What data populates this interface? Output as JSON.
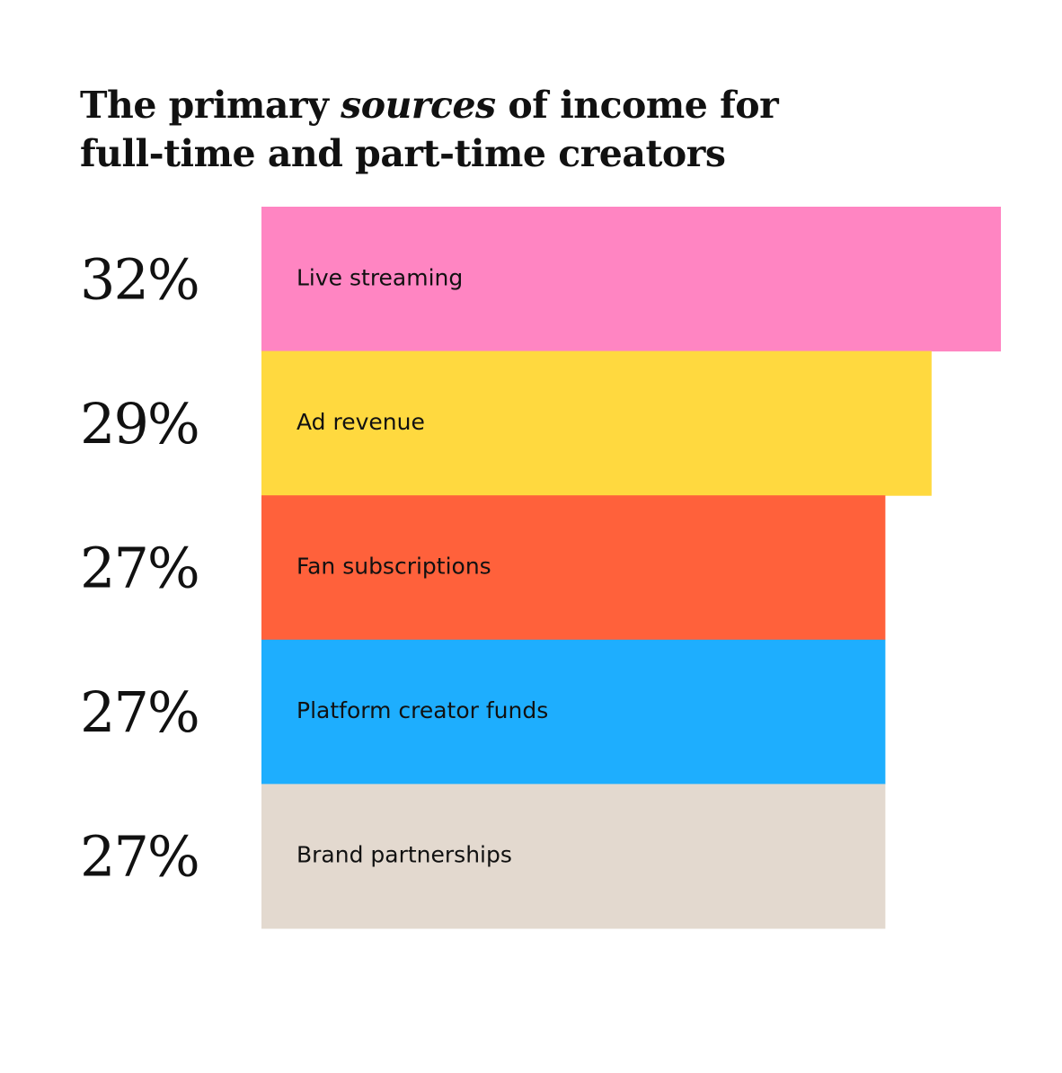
{
  "title": {
    "pre": "The primary ",
    "emphasis": "sources",
    "post": " of income for",
    "line2": "full-time and part-time creators"
  },
  "chart_data": {
    "type": "bar",
    "orientation": "horizontal",
    "categories": [
      "Live streaming",
      "Ad revenue",
      "Fan subscriptions",
      "Platform creator funds",
      "Brand partnerships"
    ],
    "values": [
      32,
      29,
      27,
      27,
      27
    ],
    "value_labels": [
      "32%",
      "29%",
      "27%",
      "27%",
      "27%"
    ],
    "colors": [
      "#ff85c2",
      "#ffd93f",
      "#ff613b",
      "#1eaefe",
      "#e3d9cf"
    ],
    "xlim": [
      0,
      32
    ],
    "grid": false,
    "legend": "none"
  }
}
